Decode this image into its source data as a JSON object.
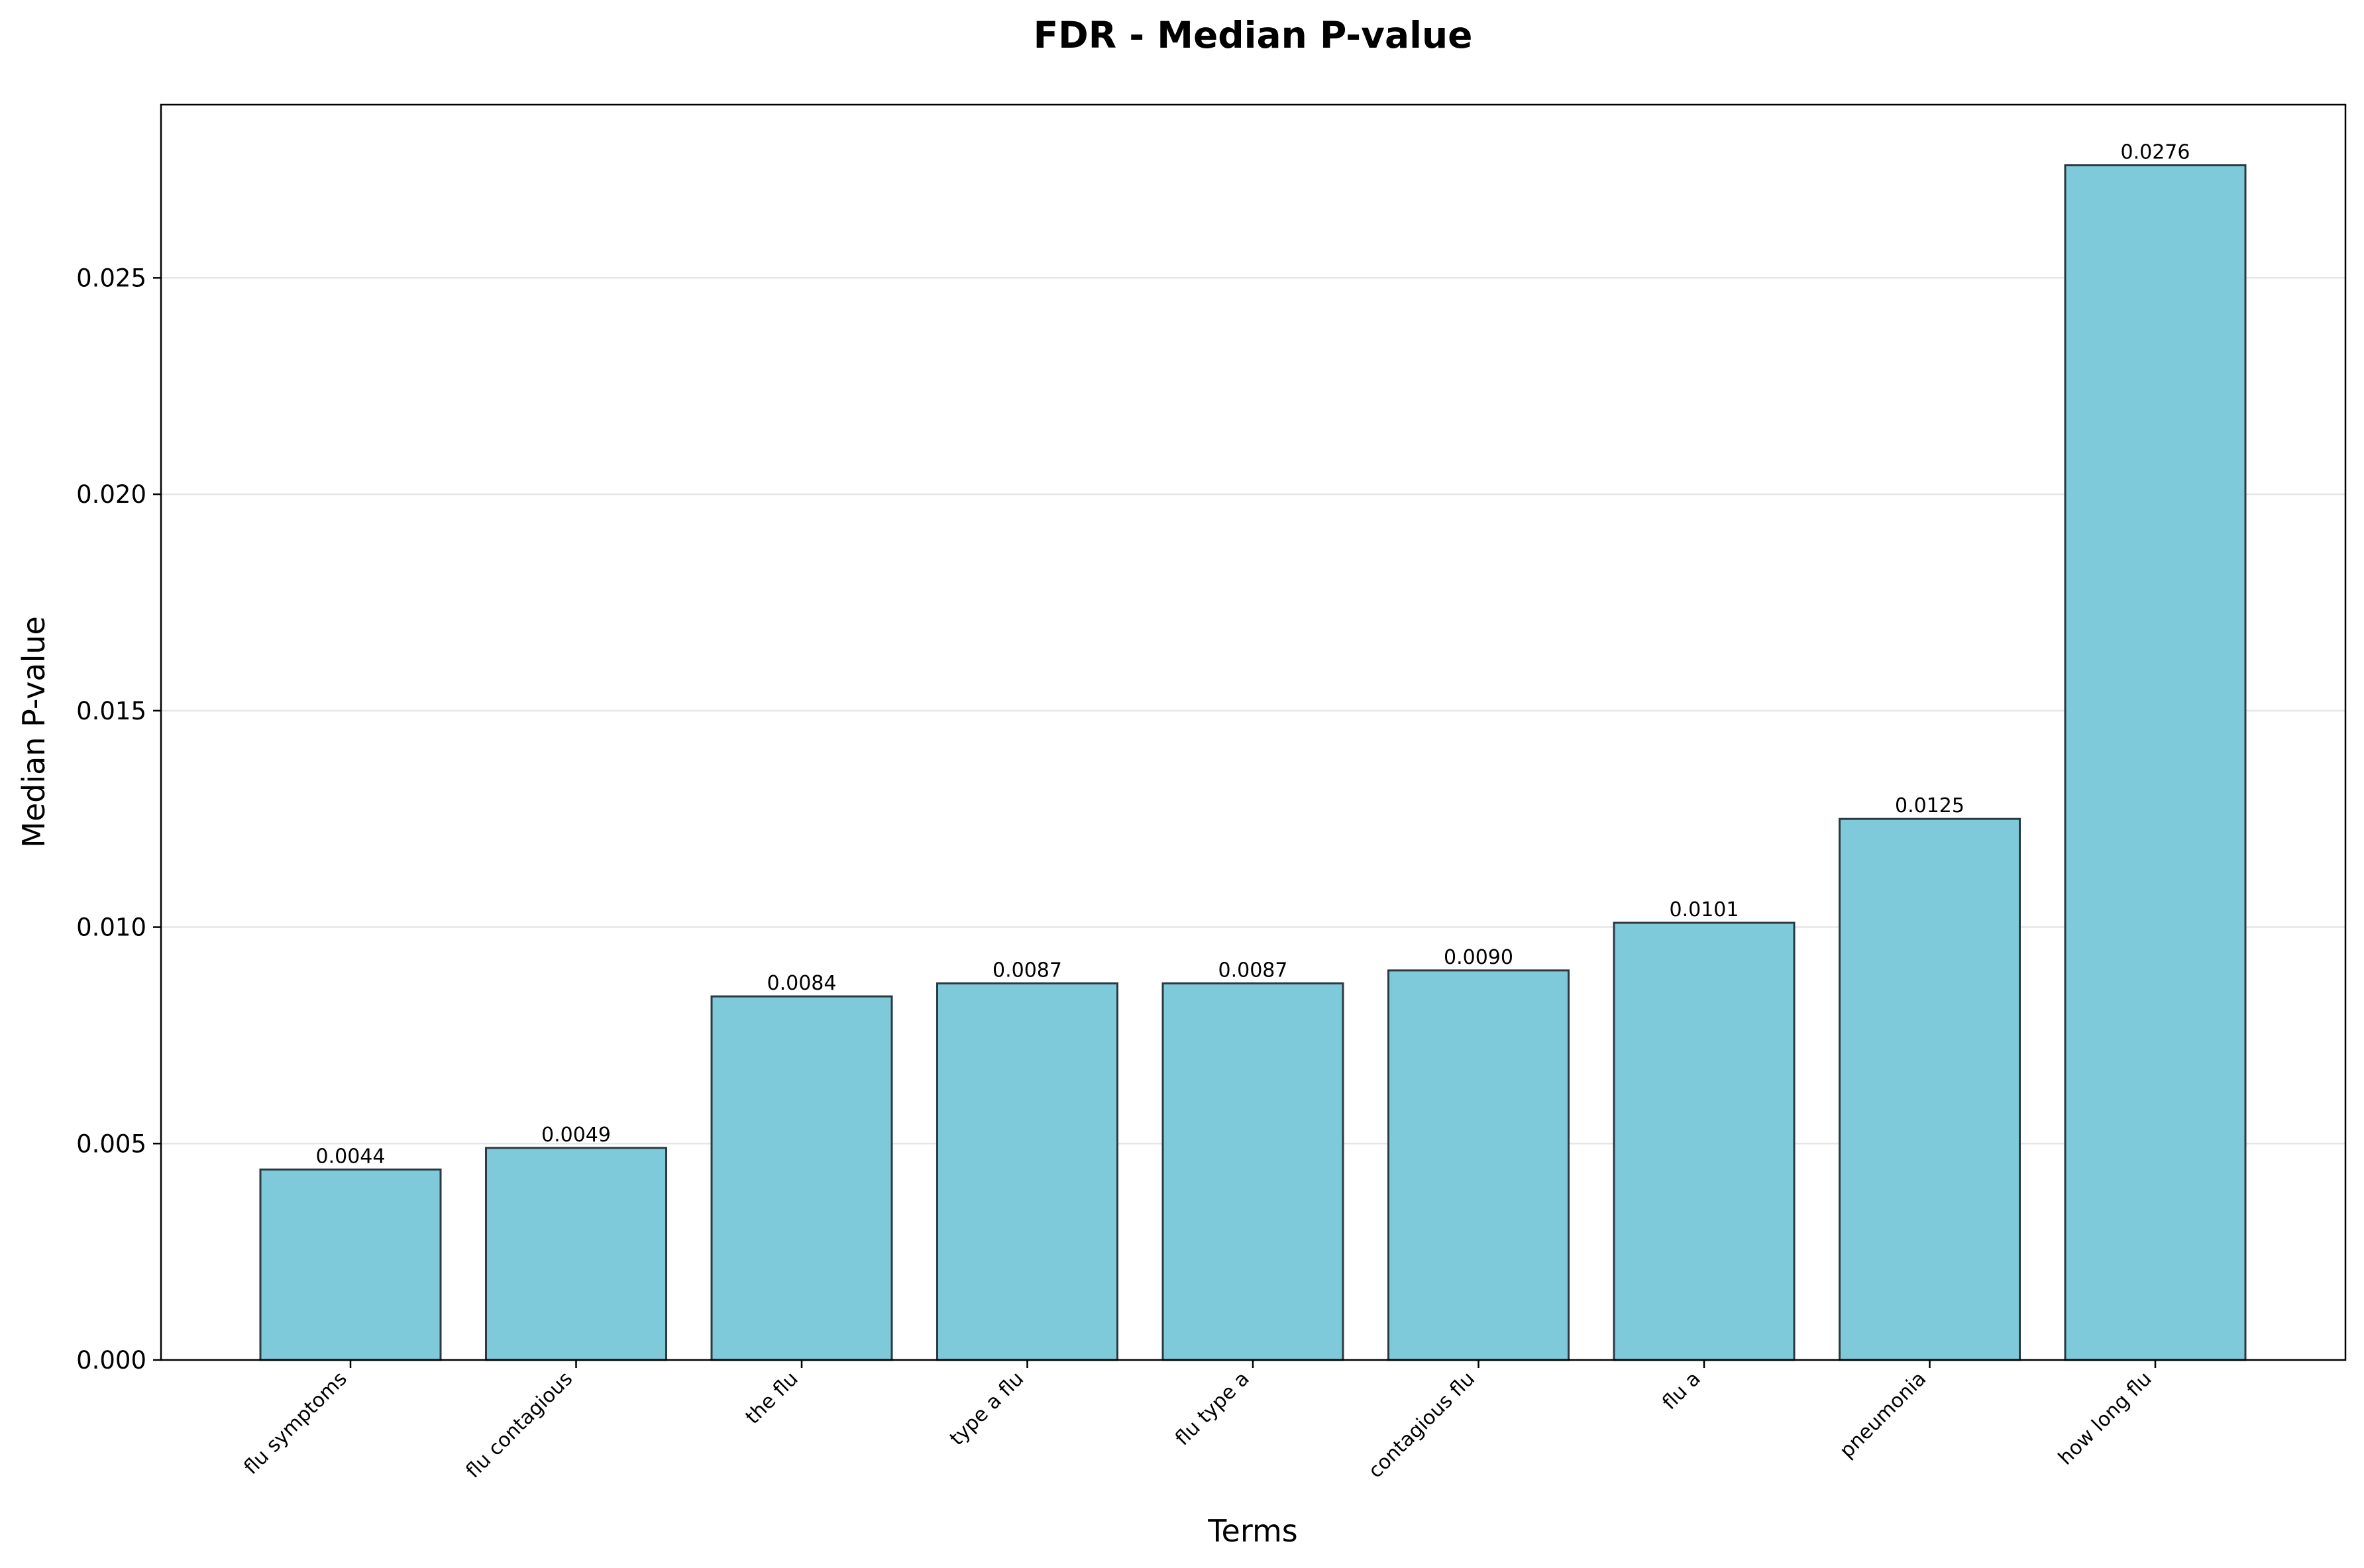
{
  "chart_data": {
    "type": "bar",
    "title": "FDR - Median P-value",
    "xlabel": "Terms",
    "ylabel": "Median P-value",
    "categories": [
      "flu symptoms",
      "flu contagious",
      "the flu",
      "type a flu",
      "flu type a",
      "contagious flu",
      "flu a",
      "pneumonia",
      "how long flu"
    ],
    "values": [
      0.0044,
      0.0049,
      0.0084,
      0.0087,
      0.0087,
      0.009,
      0.0101,
      0.0125,
      0.0276
    ],
    "value_labels": [
      "0.0044",
      "0.0049",
      "0.0084",
      "0.0087",
      "0.0087",
      "0.0090",
      "0.0101",
      "0.0125",
      "0.0276"
    ],
    "ylim": [
      0,
      0.029
    ],
    "yticks": [
      0.0,
      0.005,
      0.01,
      0.015,
      0.02,
      0.025
    ],
    "ytick_labels": [
      "0.000",
      "0.005",
      "0.010",
      "0.015",
      "0.020",
      "0.025"
    ],
    "grid": "horizontal",
    "colors": {
      "bar_fill": "#7ecadb",
      "bar_edge": "#2b3a42",
      "grid": "#e6e6e6",
      "axis": "#000000"
    }
  }
}
